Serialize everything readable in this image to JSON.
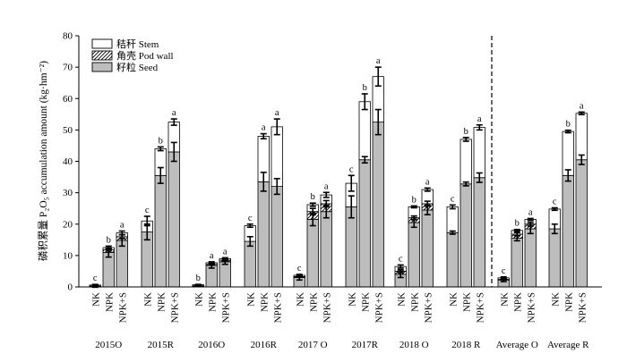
{
  "chart_data": {
    "type": "bar",
    "stacked": true,
    "ylabel": "磷积累量 P₂O₅ accumulation amount (kg·hm⁻²)",
    "ylim": [
      0,
      80
    ],
    "yticks": [
      0,
      10,
      20,
      30,
      40,
      50,
      60,
      70,
      80
    ],
    "grid": false,
    "legend_position": "top-left",
    "series": [
      {
        "name": "籽粒 Seed",
        "key": "seed",
        "color": "#bdbdbd",
        "pattern": "solid"
      },
      {
        "name": "角壳 Pod wall",
        "key": "pod",
        "color": "#ffffff",
        "pattern": "hatch"
      },
      {
        "name": "秸秆 Stem",
        "key": "stem",
        "color": "#ffffff",
        "pattern": "plain"
      }
    ],
    "treatments": [
      "NK",
      "NPK",
      "NPK+S"
    ],
    "groups": [
      {
        "label": "2015O",
        "bars": [
          {
            "seed": 0.2,
            "seed_err": 0.3,
            "pod": 0.1,
            "pod_err": 0,
            "stem": 0.3,
            "stem_err": 0.2,
            "letter": "c"
          },
          {
            "seed": 11.0,
            "seed_err": 1.5,
            "pod": 0.8,
            "pod_err": 0.4,
            "stem": 0.7,
            "stem_err": 0.5,
            "letter": "b"
          },
          {
            "seed": 14.8,
            "seed_err": 1.8,
            "pod": 1.2,
            "pod_err": 0.6,
            "stem": 1.2,
            "stem_err": 0.6,
            "letter": "a"
          }
        ]
      },
      {
        "label": "2015R",
        "bars": [
          {
            "seed": 17.5,
            "seed_err": 2.5,
            "pod": 0,
            "pod_err": 0,
            "stem": 3.5,
            "stem_err": 1.5,
            "letter": "c"
          },
          {
            "seed": 35.5,
            "seed_err": 2.5,
            "pod": 0,
            "pod_err": 0,
            "stem": 8.5,
            "stem_err": 0.6,
            "letter": "b"
          },
          {
            "seed": 43.0,
            "seed_err": 3.0,
            "pod": 0,
            "pod_err": 0,
            "stem": 9.5,
            "stem_err": 1.0,
            "letter": "a"
          }
        ]
      },
      {
        "label": "2016O",
        "bars": [
          {
            "seed": 0.3,
            "seed_err": 0.2,
            "pod": 0.1,
            "pod_err": 0,
            "stem": 0.3,
            "stem_err": 0.1,
            "letter": "b"
          },
          {
            "seed": 6.8,
            "seed_err": 0.8,
            "pod": 0.4,
            "pod_err": 0.2,
            "stem": 0.5,
            "stem_err": 0.3,
            "letter": "a"
          },
          {
            "seed": 8.0,
            "seed_err": 0.8,
            "pod": 0.5,
            "pod_err": 0.2,
            "stem": 0.5,
            "stem_err": 0.3,
            "letter": "a"
          }
        ]
      },
      {
        "label": "2016R",
        "bars": [
          {
            "seed": 14.5,
            "seed_err": 1.5,
            "pod": 0,
            "pod_err": 0,
            "stem": 5.0,
            "stem_err": 0.5,
            "letter": "c"
          },
          {
            "seed": 33.5,
            "seed_err": 3.0,
            "pod": 0,
            "pod_err": 0,
            "stem": 14.5,
            "stem_err": 0.8,
            "letter": "a"
          },
          {
            "seed": 32.0,
            "seed_err": 2.5,
            "pod": 0,
            "pod_err": 0,
            "stem": 19.0,
            "stem_err": 2.5,
            "letter": "a"
          }
        ]
      },
      {
        "label": "2017 O",
        "bars": [
          {
            "seed": 3.0,
            "seed_err": 0.8,
            "pod": 0.3,
            "pod_err": 0.2,
            "stem": 0.4,
            "stem_err": 0.3,
            "letter": "c"
          },
          {
            "seed": 21.5,
            "seed_err": 2.0,
            "pod": 2.5,
            "pod_err": 1.0,
            "stem": 2.2,
            "stem_err": 0.5,
            "letter": "b"
          },
          {
            "seed": 24.0,
            "seed_err": 2.0,
            "pod": 2.5,
            "pod_err": 1.0,
            "stem": 2.8,
            "stem_err": 0.8,
            "letter": "a"
          }
        ]
      },
      {
        "label": "2017R",
        "bars": [
          {
            "seed": 25.5,
            "seed_err": 3.5,
            "pod": 0,
            "pod_err": 0,
            "stem": 7.5,
            "stem_err": 2.5,
            "letter": "c"
          },
          {
            "seed": 40.5,
            "seed_err": 1.0,
            "pod": 0,
            "pod_err": 0,
            "stem": 18.5,
            "stem_err": 2.5,
            "letter": "b"
          },
          {
            "seed": 52.5,
            "seed_err": 4.0,
            "pod": 0,
            "pod_err": 0,
            "stem": 14.5,
            "stem_err": 3.0,
            "letter": "a"
          }
        ]
      },
      {
        "label": "2018 O",
        "bars": [
          {
            "seed": 4.0,
            "seed_err": 1.0,
            "pod": 1.0,
            "pod_err": 0.5,
            "stem": 1.5,
            "stem_err": 0.5,
            "letter": "c"
          },
          {
            "seed": 20.5,
            "seed_err": 1.5,
            "pod": 1.5,
            "pod_err": 0.6,
            "stem": 3.5,
            "stem_err": 0.3,
            "letter": "b"
          },
          {
            "seed": 24.5,
            "seed_err": 1.5,
            "pod": 2.0,
            "pod_err": 0.8,
            "stem": 4.5,
            "stem_err": 0.5,
            "letter": "a"
          }
        ]
      },
      {
        "label": "2018 R",
        "bars": [
          {
            "seed": 17.3,
            "seed_err": 0.5,
            "pod": 0,
            "pod_err": 0,
            "stem": 8.2,
            "stem_err": 0.6,
            "letter": "c"
          },
          {
            "seed": 32.8,
            "seed_err": 0.6,
            "pod": 0,
            "pod_err": 0,
            "stem": 14.2,
            "stem_err": 0.6,
            "letter": "b"
          },
          {
            "seed": 34.8,
            "seed_err": 1.5,
            "pod": 0,
            "pod_err": 0,
            "stem": 16.0,
            "stem_err": 0.8,
            "letter": "a"
          }
        ]
      },
      {
        "label": "Average O",
        "bars": [
          {
            "seed": 2.2,
            "seed_err": 0.5,
            "pod": 0.2,
            "pod_err": 0.1,
            "stem": 0.5,
            "stem_err": 0.3,
            "letter": "c"
          },
          {
            "seed": 15.5,
            "seed_err": 0.8,
            "pod": 1.3,
            "pod_err": 0.5,
            "stem": 1.2,
            "stem_err": 0.3,
            "letter": "b"
          },
          {
            "seed": 18.5,
            "seed_err": 1.5,
            "pod": 1.5,
            "pod_err": 0.6,
            "stem": 1.5,
            "stem_err": 0.3,
            "letter": "a"
          }
        ]
      },
      {
        "label": "Average  R",
        "bars": [
          {
            "seed": 18.5,
            "seed_err": 1.5,
            "pod": 0,
            "pod_err": 0,
            "stem": 6.3,
            "stem_err": 0.4,
            "letter": "c"
          },
          {
            "seed": 35.5,
            "seed_err": 1.8,
            "pod": 0,
            "pod_err": 0,
            "stem": 14.0,
            "stem_err": 0.4,
            "letter": "b"
          },
          {
            "seed": 40.5,
            "seed_err": 1.5,
            "pod": 0,
            "pod_err": 0,
            "stem": 14.8,
            "stem_err": 0.4,
            "letter": "a"
          }
        ]
      }
    ],
    "divider_after_group": 7
  }
}
